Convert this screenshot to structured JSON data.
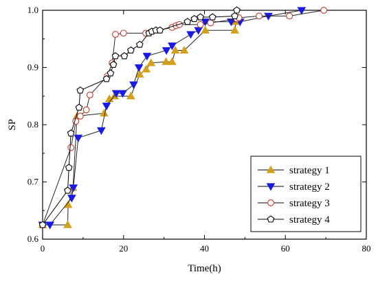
{
  "chart_data": {
    "type": "line",
    "xlabel": "Time(h)",
    "ylabel": "SP",
    "xlim": [
      0,
      80
    ],
    "ylim": [
      0.6,
      1.0
    ],
    "xticks": [
      0,
      20,
      40,
      60,
      80
    ],
    "yticks": [
      0.6,
      0.7,
      0.8,
      0.9,
      1.0
    ],
    "ytick_labels": [
      "0.6",
      "0.7",
      "0.8",
      "0.9",
      "1.0"
    ],
    "grid": false,
    "legend_position": "bottom-right",
    "series": [
      {
        "name": "strategy 1",
        "marker": "triangle-up",
        "color": "#D4A017",
        "fill": "#D4A017",
        "x": [
          0,
          6.2,
          6.3,
          7.5,
          8.5,
          15.2,
          16.5,
          17.8,
          21.8,
          24.0,
          25.6,
          26.8,
          30.5,
          32.0,
          32.8,
          35.0,
          40.2,
          47.5,
          47.8
        ],
        "y": [
          0.625,
          0.625,
          0.66,
          0.69,
          0.815,
          0.82,
          0.845,
          0.85,
          0.85,
          0.888,
          0.897,
          0.908,
          0.91,
          0.91,
          0.93,
          0.93,
          0.965,
          0.965,
          0.98
        ]
      },
      {
        "name": "strategy 2",
        "marker": "triangle-down",
        "color": "#1A1AE6",
        "fill": "#1A1AE6",
        "x": [
          0,
          1.8,
          7.2,
          7.6,
          8.8,
          14.5,
          15.8,
          18.2,
          19.8,
          22.5,
          23.8,
          25.8,
          30.6,
          32.0,
          36.6,
          38.5,
          40.2,
          46.6,
          48.8,
          55.8,
          64.0
        ],
        "y": [
          0.625,
          0.625,
          0.672,
          0.69,
          0.777,
          0.79,
          0.833,
          0.855,
          0.855,
          0.87,
          0.9,
          0.92,
          0.93,
          0.938,
          0.958,
          0.965,
          0.98,
          0.98,
          0.98,
          0.99,
          1.0
        ]
      },
      {
        "name": "strategy 3",
        "marker": "circle",
        "color": "#C0392B",
        "fill": "#ffffff",
        "x": [
          0,
          7.0,
          8.2,
          9.3,
          10.8,
          11.7,
          16.0,
          17.2,
          18.0,
          20.0,
          25.5,
          32.0,
          33.0,
          33.8,
          39.0,
          41.5,
          48.0,
          48.5,
          53.5,
          61.0,
          69.5
        ],
        "y": [
          0.625,
          0.76,
          0.806,
          0.815,
          0.826,
          0.852,
          0.885,
          0.908,
          0.958,
          0.96,
          0.96,
          0.97,
          0.973,
          0.975,
          0.975,
          0.978,
          0.985,
          0.987,
          0.99,
          0.99,
          1.0
        ]
      },
      {
        "name": "strategy 4",
        "marker": "pentagon",
        "color": "#000000",
        "fill": "#ffffff",
        "x": [
          0,
          6.2,
          6.5,
          7.0,
          9.0,
          9.3,
          15.8,
          16.8,
          17.5,
          18.0,
          20.2,
          21.8,
          24.0,
          26.3,
          27.0,
          28.0,
          29.0,
          35.8,
          37.5,
          39.0,
          42.0,
          47.5,
          48.0
        ],
        "y": [
          0.625,
          0.685,
          0.725,
          0.785,
          0.83,
          0.86,
          0.88,
          0.89,
          0.905,
          0.92,
          0.92,
          0.93,
          0.94,
          0.96,
          0.963,
          0.965,
          0.965,
          0.98,
          0.985,
          0.988,
          0.988,
          0.99,
          1.0
        ]
      }
    ]
  }
}
